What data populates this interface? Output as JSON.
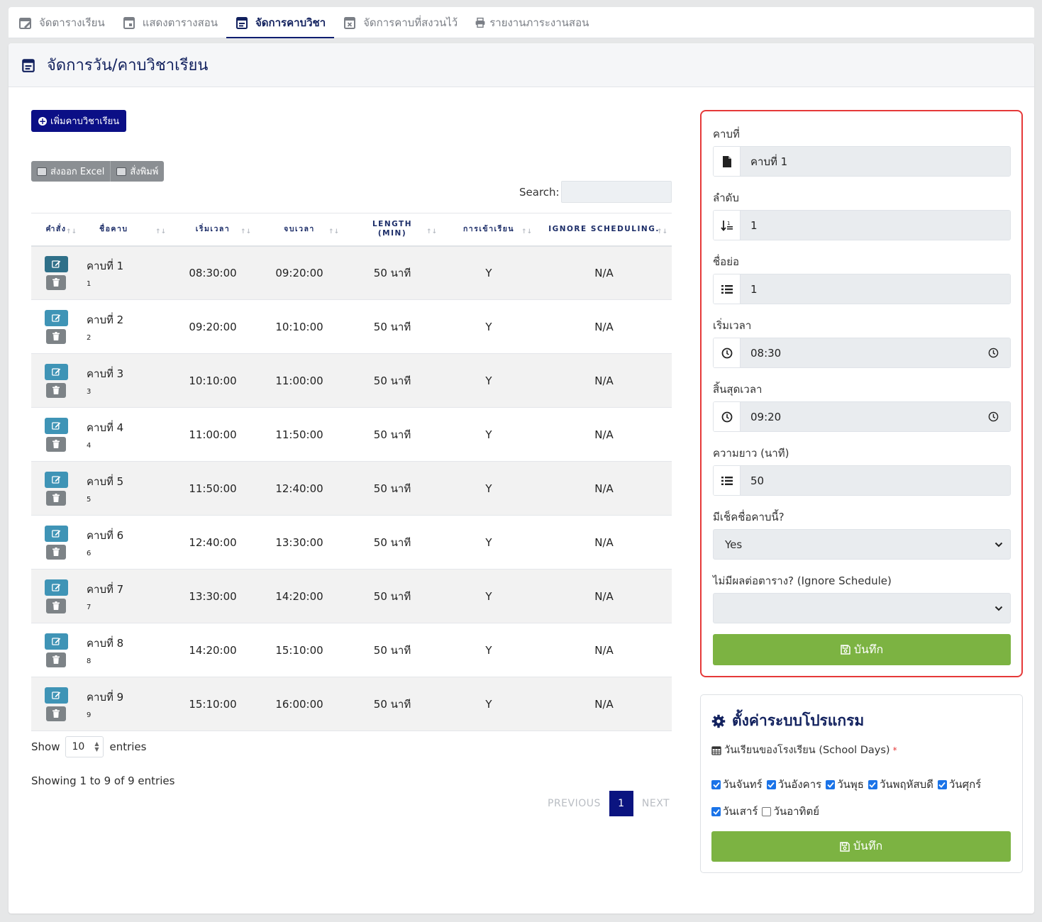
{
  "tabs": [
    {
      "label": "จัดตารางเรียน",
      "icon": "calendar-edit-icon"
    },
    {
      "label": "แสดงตารางสอน",
      "icon": "calendar-day-icon"
    },
    {
      "label": "จัดการคาบวิชา",
      "icon": "calendar-list-icon",
      "active": true
    },
    {
      "label": "จัดการคาบที่สงวนไว้",
      "icon": "calendar-x-icon"
    },
    {
      "label": "รายงานภาระงานสอน",
      "icon": "printer-icon"
    }
  ],
  "page_title": "จัดการวัน/คาบวิชาเรียน",
  "add_button": "เพิ่มคาบวิชาเรียน",
  "export": {
    "excel": "ส่งออก Excel",
    "print": "สั่งพิมพ์"
  },
  "search": {
    "label": "Search:",
    "value": ""
  },
  "table": {
    "headers": [
      "คำสั่ง",
      "ชื่อคาบ",
      "เริ่มเวลา",
      "จบเวลา",
      "LENGTH (MIN)",
      "การเข้าเรียน",
      "IGNORE SCHEDULING."
    ],
    "rows": [
      {
        "name": "คาบที่ 1",
        "short": "1",
        "start": "08:30:00",
        "end": "09:20:00",
        "length": "50 นาที",
        "attendance": "Y",
        "ignore": "N/A"
      },
      {
        "name": "คาบที่ 2",
        "short": "2",
        "start": "09:20:00",
        "end": "10:10:00",
        "length": "50 นาที",
        "attendance": "Y",
        "ignore": "N/A"
      },
      {
        "name": "คาบที่ 3",
        "short": "3",
        "start": "10:10:00",
        "end": "11:00:00",
        "length": "50 นาที",
        "attendance": "Y",
        "ignore": "N/A"
      },
      {
        "name": "คาบที่ 4",
        "short": "4",
        "start": "11:00:00",
        "end": "11:50:00",
        "length": "50 นาที",
        "attendance": "Y",
        "ignore": "N/A"
      },
      {
        "name": "คาบที่ 5",
        "short": "5",
        "start": "11:50:00",
        "end": "12:40:00",
        "length": "50 นาที",
        "attendance": "Y",
        "ignore": "N/A"
      },
      {
        "name": "คาบที่ 6",
        "short": "6",
        "start": "12:40:00",
        "end": "13:30:00",
        "length": "50 นาที",
        "attendance": "Y",
        "ignore": "N/A"
      },
      {
        "name": "คาบที่ 7",
        "short": "7",
        "start": "13:30:00",
        "end": "14:20:00",
        "length": "50 นาที",
        "attendance": "Y",
        "ignore": "N/A"
      },
      {
        "name": "คาบที่ 8",
        "short": "8",
        "start": "14:20:00",
        "end": "15:10:00",
        "length": "50 นาที",
        "attendance": "Y",
        "ignore": "N/A"
      },
      {
        "name": "คาบที่ 9",
        "short": "9",
        "start": "15:10:00",
        "end": "16:00:00",
        "length": "50 นาที",
        "attendance": "Y",
        "ignore": "N/A"
      }
    ]
  },
  "length_menu": {
    "show": "Show",
    "value": "10",
    "entries": "entries"
  },
  "info": "Showing 1 to 9 of 9 entries",
  "pagination": {
    "previous": "PREVIOUS",
    "current": "1",
    "next": "NEXT"
  },
  "form": {
    "period_label": "คาบที่",
    "period_value": "คาบที่ 1",
    "order_label": "ลำดับ",
    "order_value": "1",
    "short_label": "ชื่อย่อ",
    "short_value": "1",
    "start_label": "เริ่มเวลา",
    "start_value": "08:30",
    "end_label": "สิ้นสุดเวลา",
    "end_value": "09:20",
    "length_label": "ความยาว (นาที)",
    "length_value": "50",
    "attendance_label": "มีเช็คชื่อคาบนี้?",
    "attendance_value": "Yes",
    "ignore_label": "ไม่มีผลต่อตาราง? (Ignore Schedule)",
    "ignore_value": "",
    "save": "บันทึก"
  },
  "settings": {
    "title": "ตั้งค่าระบบโปรแกรม",
    "school_days_label": "วันเรียนของโรงเรียน (School Days)",
    "required_mark": "*",
    "days": [
      {
        "label": "วันจันทร์",
        "checked": true
      },
      {
        "label": "วันอังคาร",
        "checked": true
      },
      {
        "label": "วันพุธ",
        "checked": true
      },
      {
        "label": "วันพฤหัสบดี",
        "checked": true
      },
      {
        "label": "วันศุกร์",
        "checked": true
      },
      {
        "label": "วันเสาร์",
        "checked": true
      },
      {
        "label": "วันอาทิตย์",
        "checked": false
      }
    ],
    "save": "บันทึก"
  },
  "colors": {
    "navy": "#12215e",
    "primary": "#0b0f86",
    "success": "#7cb342",
    "danger": "#e53939",
    "info": "#3f94b6"
  }
}
